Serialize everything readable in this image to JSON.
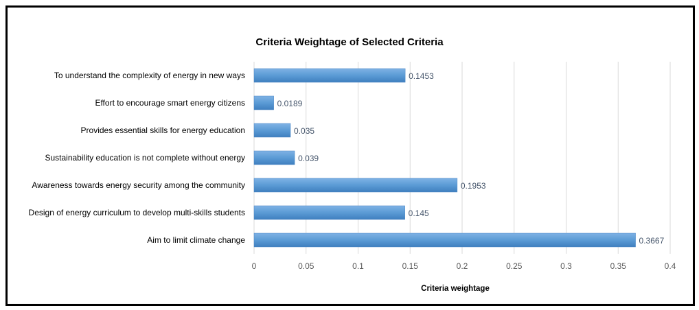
{
  "chart_data": {
    "type": "bar",
    "orientation": "horizontal",
    "title": "Criteria Weightage of Selected Criteria",
    "xlabel": "Criteria weightage",
    "ylabel": "",
    "categories": [
      "To understand the complexity of energy in new ways",
      "Effort to encourage smart energy citizens",
      "Provides essential skills for energy education",
      "Sustainability education is not complete without energy",
      "Awareness towards energy security among the community",
      "Design of energy curriculum to develop multi-skills students",
      "Aim to limit climate change"
    ],
    "values": [
      0.1453,
      0.0189,
      0.035,
      0.039,
      0.1953,
      0.145,
      0.3667
    ],
    "value_labels": [
      "0.1453",
      "0.0189",
      "0.035",
      "0.039",
      "0.1953",
      "0.145",
      "0.3667"
    ],
    "xlim": [
      0,
      0.4
    ],
    "x_ticks": [
      "0",
      "0.05",
      "0.1",
      "0.15",
      "0.2",
      "0.25",
      "0.3",
      "0.35",
      "0.4"
    ],
    "grid": true,
    "bar_color": "#5b9bd5"
  }
}
